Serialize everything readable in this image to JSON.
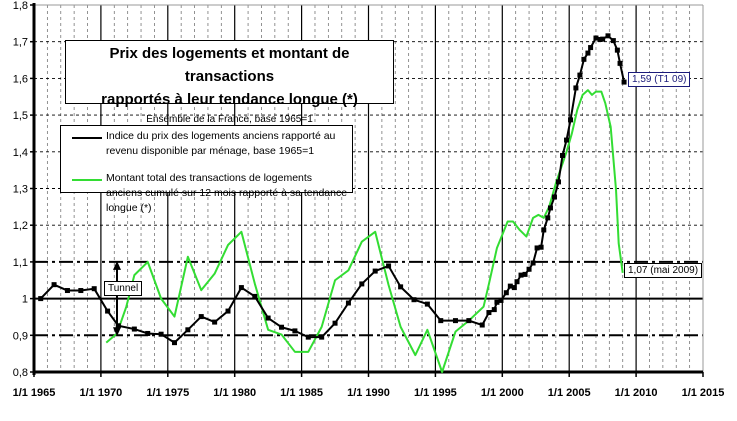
{
  "colors": {
    "price": "#000000",
    "transactions": "#33dd33",
    "tunnel": "#000000",
    "grid": "#555555",
    "annotation_price": "#1a1a7a"
  },
  "title": {
    "line1": "Prix des logements et montant de transactions",
    "line2": "rapportés à leur tendance longue (*)",
    "subtitle": "Ensemble de la France, base 1965=1"
  },
  "legend": {
    "price": "Indice du prix des logements anciens rapporté au revenu disponible par ménage, base 1965=1",
    "transactions": "Montant total des transactions de logements anciens cumulé sur 12 mois rapporté à sa tendance longue (*)"
  },
  "annotations": {
    "price_last": "1,59 (T1 09)",
    "transactions_last": "1,07 (mai 2009)",
    "tunnel": "Tunnel"
  },
  "chart_data": {
    "type": "line",
    "xlim": [
      1965,
      2015
    ],
    "ylim": [
      0.8,
      1.8
    ],
    "x_ticks": [
      1965,
      1970,
      1975,
      1980,
      1985,
      1990,
      1995,
      2000,
      2005,
      2010,
      2015
    ],
    "x_tick_labels": [
      "1/1 1965",
      "1/1 1970",
      "1/1 1975",
      "1/1 1980",
      "1/1 1985",
      "1/1 1990",
      "1/1 1995",
      "1/1 2000",
      "1/1 2005",
      "1/1 2010",
      "1/1 2015"
    ],
    "y_ticks": [
      0.8,
      0.9,
      1.0,
      1.1,
      1.2,
      1.3,
      1.4,
      1.5,
      1.6,
      1.7,
      1.8
    ],
    "y_tick_labels": [
      "0,8",
      "0,9",
      "1",
      "1,1",
      "1,2",
      "1,3",
      "1,4",
      "1,5",
      "1,6",
      "1,7",
      "1,8"
    ],
    "grid": true,
    "reference_lines": [
      {
        "y": 1.0,
        "style": "solid"
      },
      {
        "y": 1.1,
        "style": "dashdot"
      },
      {
        "y": 0.9,
        "style": "dashdot"
      }
    ],
    "series": [
      {
        "name": "Indice du prix des logements anciens rapporté au revenu disponible par ménage, base 1965=1",
        "markers": true,
        "x": [
          1965.5,
          1966.5,
          1967.5,
          1968.5,
          1969.5,
          1970.5,
          1971.3,
          1972.5,
          1973.5,
          1974.5,
          1975.5,
          1976.5,
          1977.5,
          1978.5,
          1979.5,
          1980.5,
          1981.5,
          1982.5,
          1983.5,
          1984.5,
          1985.5,
          1986.5,
          1987.5,
          1988.5,
          1989.5,
          1990.5,
          1991.5,
          1992.4,
          1993.4,
          1994.4,
          1995.4,
          1996.5,
          1997.5,
          1998.5,
          1999.0,
          1999.4,
          1999.6,
          1999.9,
          2000.3,
          2000.6,
          2000.9,
          2001.1,
          2001.4,
          2001.7,
          2002.0,
          2002.3,
          2002.6,
          2002.9,
          2003.1,
          2003.4,
          2003.6,
          2003.9,
          2004.2,
          2004.5,
          2004.8,
          2005.1,
          2005.5,
          2005.8,
          2006.1,
          2006.4,
          2006.6,
          2007.0,
          2007.3,
          2007.5,
          2007.9,
          2008.3,
          2008.6,
          2008.8,
          2009.1
        ],
        "y": [
          1.0,
          1.038,
          1.022,
          1.022,
          1.027,
          0.966,
          0.926,
          0.917,
          0.905,
          0.903,
          0.88,
          0.915,
          0.951,
          0.936,
          0.966,
          1.03,
          1.006,
          0.947,
          0.922,
          0.912,
          0.895,
          0.895,
          0.933,
          0.988,
          1.04,
          1.075,
          1.089,
          1.032,
          0.997,
          0.985,
          0.94,
          0.94,
          0.94,
          0.928,
          0.962,
          0.97,
          0.99,
          0.995,
          1.016,
          1.034,
          1.03,
          1.046,
          1.064,
          1.066,
          1.08,
          1.097,
          1.138,
          1.14,
          1.187,
          1.22,
          1.247,
          1.277,
          1.318,
          1.39,
          1.432,
          1.487,
          1.574,
          1.609,
          1.652,
          1.669,
          1.684,
          1.71,
          1.706,
          1.707,
          1.716,
          1.703,
          1.677,
          1.641,
          1.59
        ]
      },
      {
        "name": "Montant total des transactions de logements anciens cumulé sur 12 mois rapporté à sa tendance longue (*)",
        "markers": false,
        "x": [
          1970.4,
          1971.2,
          1971.9,
          1972.5,
          1973.5,
          1974.5,
          1975.5,
          1976.5,
          1977.5,
          1978.5,
          1979.5,
          1980.5,
          1981.5,
          1982.5,
          1983.5,
          1984.5,
          1985.5,
          1986.5,
          1987.5,
          1988.5,
          1989.5,
          1990.5,
          1991.5,
          1992.4,
          1993.5,
          1994.4,
          1995.5,
          1996.5,
          1997.5,
          1998.6,
          1999.0,
          1999.6,
          2000.4,
          2000.8,
          2001.3,
          2001.8,
          2002.3,
          2002.7,
          2003.1,
          2003.5,
          2004.0,
          2004.8,
          2005.2,
          2005.6,
          2006.0,
          2006.4,
          2006.7,
          2007.0,
          2007.4,
          2007.7,
          2008.1,
          2008.5,
          2008.7,
          2009.0
        ],
        "y": [
          0.88,
          0.905,
          0.978,
          1.064,
          1.1,
          1.0,
          0.951,
          1.114,
          1.023,
          1.068,
          1.146,
          1.182,
          1.041,
          0.915,
          0.902,
          0.855,
          0.855,
          0.923,
          1.05,
          1.077,
          1.155,
          1.182,
          1.037,
          0.923,
          0.846,
          0.915,
          0.8,
          0.91,
          0.94,
          0.978,
          1.04,
          1.138,
          1.21,
          1.21,
          1.187,
          1.169,
          1.22,
          1.228,
          1.22,
          1.25,
          1.314,
          1.4,
          1.45,
          1.514,
          1.555,
          1.568,
          1.555,
          1.564,
          1.564,
          1.532,
          1.468,
          1.296,
          1.15,
          1.07
        ]
      }
    ]
  }
}
